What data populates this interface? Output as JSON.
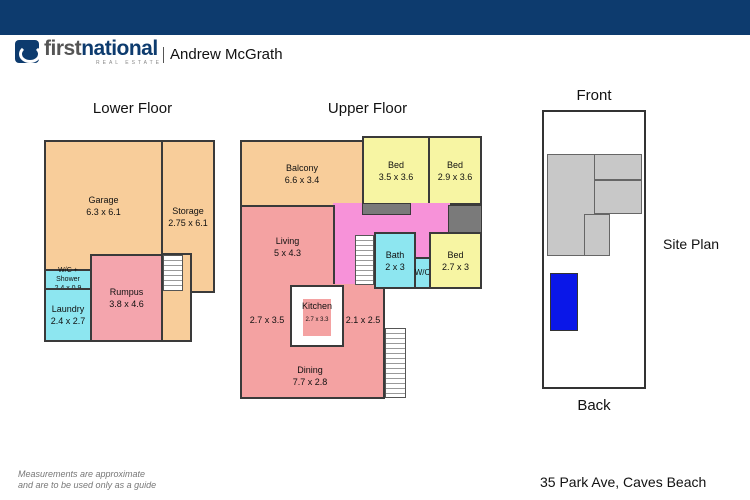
{
  "header": {
    "brand": "firstnational",
    "brand_first": "first",
    "brand_second": "national",
    "brand_sub": "REAL ESTATE",
    "agent": "Andrew McGrath",
    "bar_color": "#0d3b6e"
  },
  "lower_floor": {
    "title": "Lower Floor",
    "rooms": [
      {
        "name": "Garage",
        "dims": "6.3 x 6.1"
      },
      {
        "name": "Storage",
        "dims": "2.75 x 6.1"
      },
      {
        "name": "W/C + Shower",
        "dims": "2.4 x 0.9"
      },
      {
        "name": "Laundry",
        "dims": "2.4 x 2.7"
      },
      {
        "name": "Rumpus",
        "dims": "3.8 x 4.6"
      }
    ]
  },
  "upper_floor": {
    "title": "Upper Floor",
    "rooms": [
      {
        "name": "Balcony",
        "dims": "6.6 x 3.4"
      },
      {
        "name": "Bed",
        "dims": "3.5 x 3.6"
      },
      {
        "name": "Bed",
        "dims": "2.9 x 3.6"
      },
      {
        "name": "Living",
        "dims": "5 x 4.3"
      },
      {
        "name": "Bath",
        "dims": "2 x 3"
      },
      {
        "name": "W/C",
        "dims": ""
      },
      {
        "name": "Bed",
        "dims": "2.7 x 3"
      },
      {
        "name": "Kitchen",
        "dims": "2.7 x 3.3"
      },
      {
        "name": "",
        "dims": "2.7 x 3.5"
      },
      {
        "name": "",
        "dims": "2.1 x 2.5"
      },
      {
        "name": "Dining",
        "dims": "7.7 x 2.8"
      }
    ]
  },
  "site_plan": {
    "title": "Site Plan",
    "front": "Front",
    "back": "Back",
    "pool_color": "#0a17e8"
  },
  "footer": {
    "note_line1": "Measurements are approximate",
    "note_line2": "and are to be used only as a guide",
    "address": "35 Park Ave, Caves Beach"
  }
}
